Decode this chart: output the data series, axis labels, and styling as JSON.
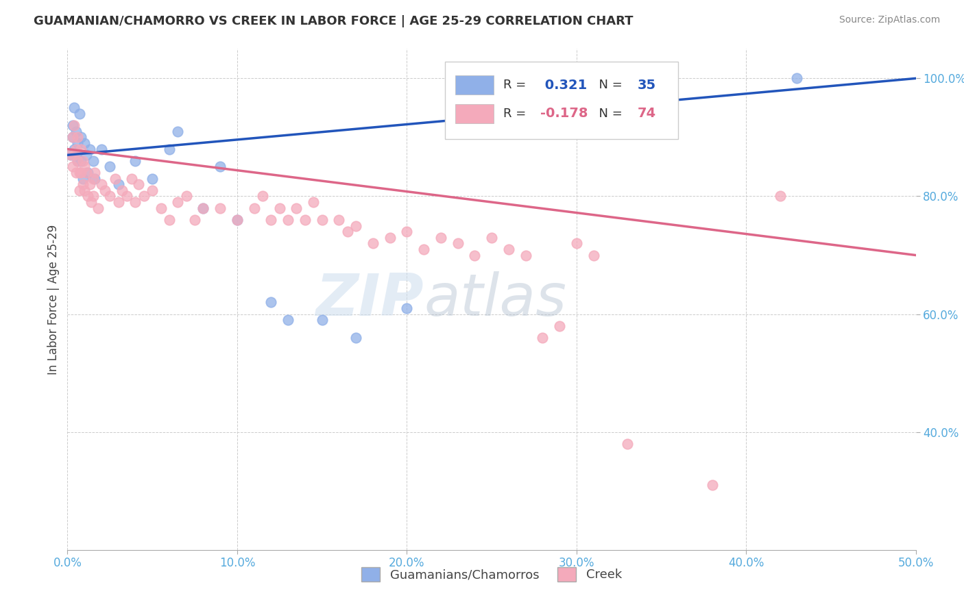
{
  "title": "GUAMANIAN/CHAMORRO VS CREEK IN LABOR FORCE | AGE 25-29 CORRELATION CHART",
  "source": "Source: ZipAtlas.com",
  "ylabel": "In Labor Force | Age 25-29",
  "xlim": [
    0.0,
    0.5
  ],
  "ylim": [
    0.2,
    1.05
  ],
  "xticklabels": [
    "0.0%",
    "10.0%",
    "20.0%",
    "30.0%",
    "40.0%",
    "50.0%"
  ],
  "xticks": [
    0.0,
    0.1,
    0.2,
    0.3,
    0.4,
    0.5
  ],
  "yticklabels": [
    "40.0%",
    "60.0%",
    "80.0%",
    "100.0%"
  ],
  "yticks": [
    0.4,
    0.6,
    0.8,
    1.0
  ],
  "blue_scatter_color": "#90B0E8",
  "pink_scatter_color": "#F4AABB",
  "blue_line_color": "#2255BB",
  "pink_line_color": "#DD6688",
  "R_blue": 0.321,
  "N_blue": 35,
  "R_pink": -0.178,
  "N_pink": 74,
  "watermark_zip": "ZIP",
  "watermark_atlas": "atlas",
  "legend_labels": [
    "Guamanians/Chamorros",
    "Creek"
  ],
  "blue_points": [
    [
      0.002,
      0.87
    ],
    [
      0.003,
      0.9
    ],
    [
      0.003,
      0.92
    ],
    [
      0.004,
      0.88
    ],
    [
      0.004,
      0.95
    ],
    [
      0.005,
      0.91
    ],
    [
      0.005,
      0.87
    ],
    [
      0.006,
      0.89
    ],
    [
      0.006,
      0.86
    ],
    [
      0.007,
      0.94
    ],
    [
      0.008,
      0.9
    ],
    [
      0.008,
      0.86
    ],
    [
      0.009,
      0.83
    ],
    [
      0.01,
      0.89
    ],
    [
      0.011,
      0.87
    ],
    [
      0.012,
      0.84
    ],
    [
      0.013,
      0.88
    ],
    [
      0.015,
      0.86
    ],
    [
      0.016,
      0.83
    ],
    [
      0.02,
      0.88
    ],
    [
      0.025,
      0.85
    ],
    [
      0.03,
      0.82
    ],
    [
      0.04,
      0.86
    ],
    [
      0.05,
      0.83
    ],
    [
      0.06,
      0.88
    ],
    [
      0.065,
      0.91
    ],
    [
      0.08,
      0.78
    ],
    [
      0.09,
      0.85
    ],
    [
      0.1,
      0.76
    ],
    [
      0.12,
      0.62
    ],
    [
      0.13,
      0.59
    ],
    [
      0.15,
      0.59
    ],
    [
      0.17,
      0.56
    ],
    [
      0.2,
      0.61
    ],
    [
      0.43,
      1.0
    ]
  ],
  "pink_points": [
    [
      0.002,
      0.87
    ],
    [
      0.003,
      0.9
    ],
    [
      0.003,
      0.85
    ],
    [
      0.004,
      0.92
    ],
    [
      0.004,
      0.87
    ],
    [
      0.005,
      0.88
    ],
    [
      0.005,
      0.84
    ],
    [
      0.006,
      0.9
    ],
    [
      0.006,
      0.86
    ],
    [
      0.007,
      0.84
    ],
    [
      0.007,
      0.81
    ],
    [
      0.008,
      0.88
    ],
    [
      0.008,
      0.84
    ],
    [
      0.009,
      0.82
    ],
    [
      0.009,
      0.86
    ],
    [
      0.01,
      0.85
    ],
    [
      0.01,
      0.81
    ],
    [
      0.011,
      0.84
    ],
    [
      0.012,
      0.8
    ],
    [
      0.013,
      0.82
    ],
    [
      0.014,
      0.79
    ],
    [
      0.015,
      0.83
    ],
    [
      0.015,
      0.8
    ],
    [
      0.016,
      0.84
    ],
    [
      0.018,
      0.78
    ],
    [
      0.02,
      0.82
    ],
    [
      0.022,
      0.81
    ],
    [
      0.025,
      0.8
    ],
    [
      0.028,
      0.83
    ],
    [
      0.03,
      0.79
    ],
    [
      0.032,
      0.81
    ],
    [
      0.035,
      0.8
    ],
    [
      0.038,
      0.83
    ],
    [
      0.04,
      0.79
    ],
    [
      0.042,
      0.82
    ],
    [
      0.045,
      0.8
    ],
    [
      0.05,
      0.81
    ],
    [
      0.055,
      0.78
    ],
    [
      0.06,
      0.76
    ],
    [
      0.065,
      0.79
    ],
    [
      0.07,
      0.8
    ],
    [
      0.075,
      0.76
    ],
    [
      0.08,
      0.78
    ],
    [
      0.09,
      0.78
    ],
    [
      0.1,
      0.76
    ],
    [
      0.11,
      0.78
    ],
    [
      0.115,
      0.8
    ],
    [
      0.12,
      0.76
    ],
    [
      0.125,
      0.78
    ],
    [
      0.13,
      0.76
    ],
    [
      0.135,
      0.78
    ],
    [
      0.14,
      0.76
    ],
    [
      0.145,
      0.79
    ],
    [
      0.15,
      0.76
    ],
    [
      0.16,
      0.76
    ],
    [
      0.165,
      0.74
    ],
    [
      0.17,
      0.75
    ],
    [
      0.18,
      0.72
    ],
    [
      0.19,
      0.73
    ],
    [
      0.2,
      0.74
    ],
    [
      0.21,
      0.71
    ],
    [
      0.22,
      0.73
    ],
    [
      0.23,
      0.72
    ],
    [
      0.24,
      0.7
    ],
    [
      0.25,
      0.73
    ],
    [
      0.26,
      0.71
    ],
    [
      0.27,
      0.7
    ],
    [
      0.28,
      0.56
    ],
    [
      0.29,
      0.58
    ],
    [
      0.3,
      0.72
    ],
    [
      0.31,
      0.7
    ],
    [
      0.33,
      0.38
    ],
    [
      0.38,
      0.31
    ],
    [
      0.42,
      0.8
    ]
  ]
}
